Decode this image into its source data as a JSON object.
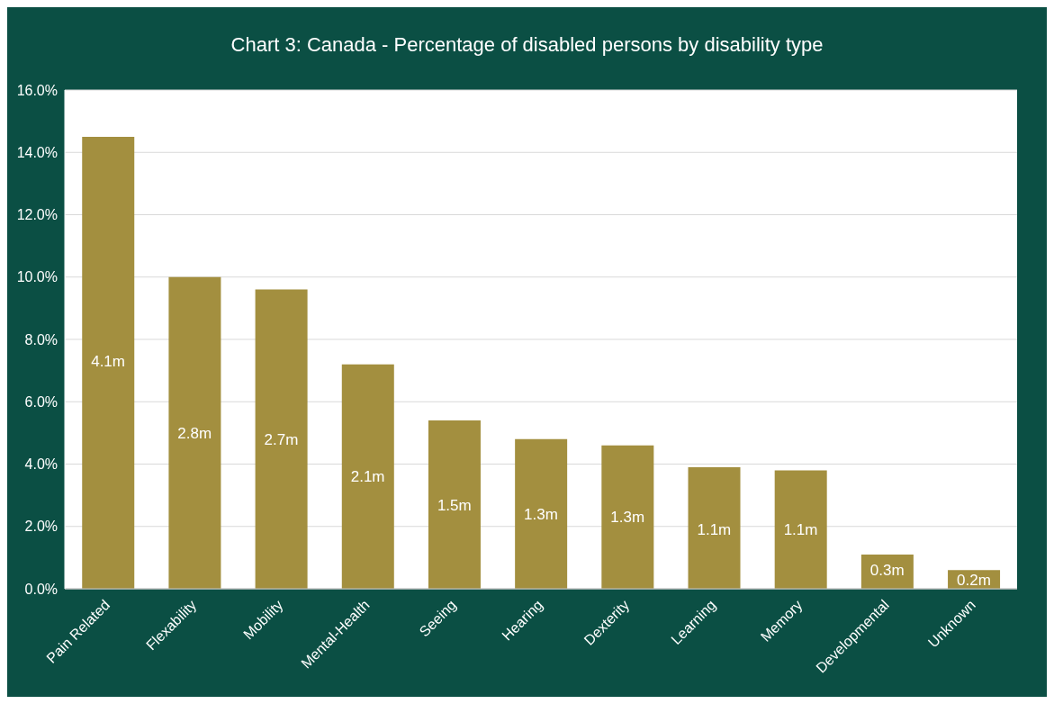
{
  "chart_data": {
    "type": "bar",
    "title": "Chart 3: Canada - Percentage of disabled persons by disability type",
    "categories": [
      "Pain Related",
      "Flexability",
      "Mobility",
      "Mental-Health",
      "Seeing",
      "Hearing",
      "Dexterity",
      "Learning",
      "Memory",
      "Developmental",
      "Unknown"
    ],
    "values": [
      14.5,
      10.0,
      9.6,
      7.2,
      5.4,
      4.8,
      4.6,
      3.9,
      3.8,
      1.1,
      0.6
    ],
    "color": "#a38f3f",
    "ylim": [
      0,
      16
    ],
    "yticks": [
      {
        "value": 0,
        "label": "0.0%"
      },
      {
        "value": 2,
        "label": "2.0%"
      },
      {
        "value": 4,
        "label": "4.0%"
      },
      {
        "value": 6,
        "label": "6.0%"
      },
      {
        "value": 8,
        "label": "8.0%"
      },
      {
        "value": 10,
        "label": "10.0%"
      },
      {
        "value": 12,
        "label": "12.0%"
      },
      {
        "value": 14,
        "label": "14.0%"
      },
      {
        "value": 16,
        "label": "16.0%"
      }
    ],
    "annotations": [
      {
        "text": "4.1m",
        "x": "Pain Related",
        "y": 7.3
      },
      {
        "text": "2.8m",
        "x": "Flexability",
        "y": 5.0
      },
      {
        "text": "2.7m",
        "x": "Mobility",
        "y": 4.8
      },
      {
        "text": "2.1m",
        "x": "Mental-Health",
        "y": 3.6
      },
      {
        "text": "1.5m",
        "x": "Seeing",
        "y": 2.7
      },
      {
        "text": "1.3m",
        "x": "Hearing",
        "y": 2.4
      },
      {
        "text": "1.3m",
        "x": "Dexterity",
        "y": 2.3
      },
      {
        "text": "1.1m",
        "x": "Learning",
        "y": 1.9
      },
      {
        "text": "1.1m",
        "x": "Memory",
        "y": 1.9
      },
      {
        "text": "0.3m",
        "x": "Developmental",
        "y": 0.6
      },
      {
        "text": "0.2m",
        "x": "Unknown",
        "y": 0.3
      }
    ],
    "grid": "y",
    "legend": false
  }
}
